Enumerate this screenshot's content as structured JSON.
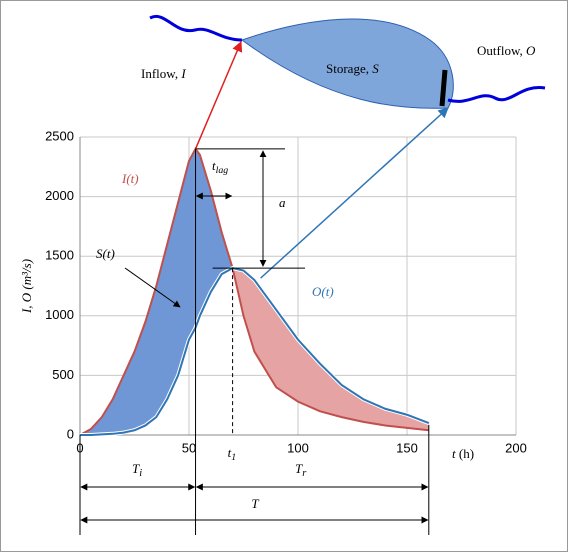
{
  "chart_data": {
    "type": "line",
    "x": [
      0,
      5,
      10,
      15,
      20,
      25,
      30,
      35,
      40,
      45,
      50,
      53,
      55,
      60,
      65,
      70,
      75,
      80,
      90,
      100,
      110,
      120,
      130,
      140,
      150,
      160
    ],
    "series": [
      {
        "name": "I(t)",
        "color": "#c0504d",
        "values": [
          0,
          50,
          150,
          300,
          500,
          700,
          950,
          1250,
          1600,
          1950,
          2300,
          2400,
          2350,
          2050,
          1700,
          1400,
          1000,
          700,
          400,
          280,
          200,
          150,
          110,
          80,
          60,
          40
        ]
      },
      {
        "name": "O(t)",
        "color": "#2e75b6",
        "values": [
          0,
          0,
          5,
          10,
          20,
          40,
          80,
          150,
          300,
          500,
          800,
          900,
          1000,
          1200,
          1350,
          1400,
          1380,
          1300,
          1050,
          800,
          600,
          420,
          300,
          220,
          170,
          100
        ]
      }
    ],
    "xlim": [
      0,
      200
    ],
    "xticks": [
      0,
      50,
      100,
      150,
      200
    ],
    "ylim": [
      0,
      2500
    ],
    "yticks": [
      0,
      500,
      1000,
      1500,
      2000,
      2500
    ],
    "grid": true,
    "xlabel": [
      "t",
      " (h)"
    ],
    "ylabel": "I, O (m³/s)",
    "storage_label": [
      "Storage, ",
      "S"
    ],
    "inflow_label": [
      "Inflow, ",
      "I"
    ],
    "outflow_label": [
      "Outflow, ",
      "O"
    ],
    "s_label": "S(t)",
    "t_lag": [
      "t",
      "lag"
    ],
    "a": "a",
    "t_1": [
      "t",
      "1"
    ],
    "T_i": [
      "T",
      "i"
    ],
    "T_r": [
      "T",
      "r"
    ],
    "T": "T"
  }
}
